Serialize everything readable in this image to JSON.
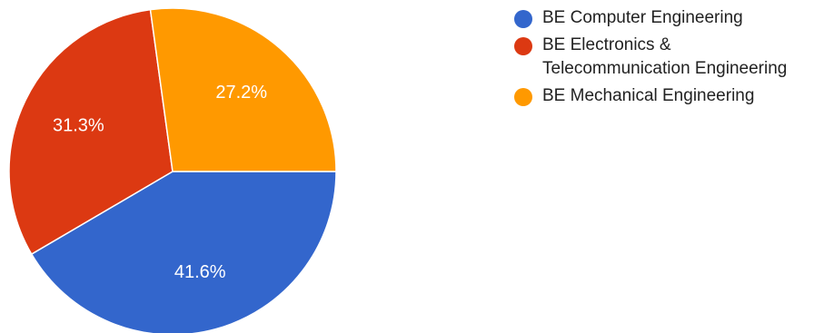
{
  "chart_data": {
    "type": "pie",
    "title": "",
    "slices": [
      {
        "label": "BE Computer Engineering",
        "value": 41.6,
        "display": "41.6%",
        "color": "#3366cc"
      },
      {
        "label": "BE Electronics & Telecommunication Engineering",
        "value": 31.3,
        "display": "31.3%",
        "color": "#dc3912"
      },
      {
        "label": "BE Mechanical Engineering",
        "value": 27.2,
        "display": "27.2%",
        "color": "#ff9900"
      }
    ],
    "legend_position": "right"
  },
  "legend": {
    "items": [
      {
        "label": "BE Computer Engineering",
        "color": "#3366cc"
      },
      {
        "label": "BE Electronics & Telecommunication Engineering",
        "color": "#dc3912"
      },
      {
        "label": "BE Mechanical Engineering",
        "color": "#ff9900"
      }
    ]
  }
}
